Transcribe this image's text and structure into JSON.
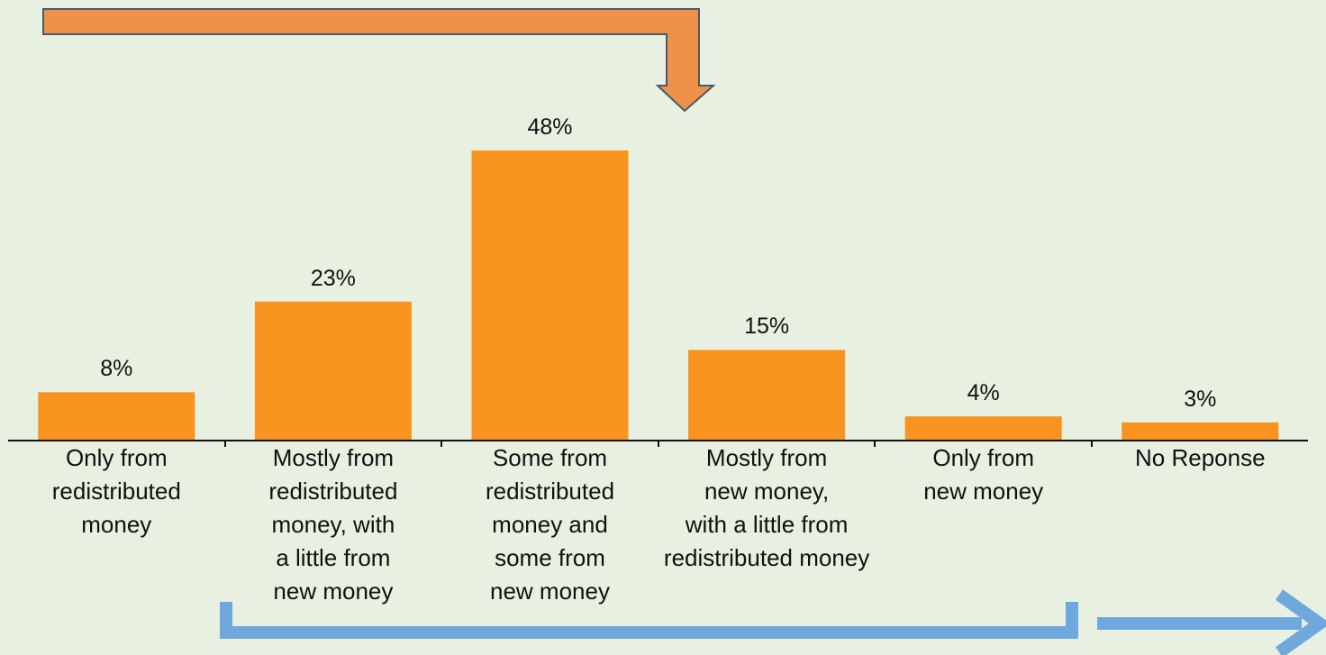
{
  "chart_data": {
    "type": "bar",
    "categories": [
      "Only from\nredistributed\nmoney",
      "Mostly from\nredistributed\nmoney, with\na little from\nnew money",
      "Some from\nredistributed\nmoney and\nsome from\nnew money",
      "Mostly from\nnew money,\nwith a little from\nredistributed money",
      "Only from\nnew money",
      "No Reponse"
    ],
    "values": [
      8,
      23,
      48,
      15,
      4,
      3
    ],
    "value_labels": [
      "8%",
      "23%",
      "48%",
      "15%",
      "4%",
      "3%"
    ],
    "color": "#f7931e"
  }
}
